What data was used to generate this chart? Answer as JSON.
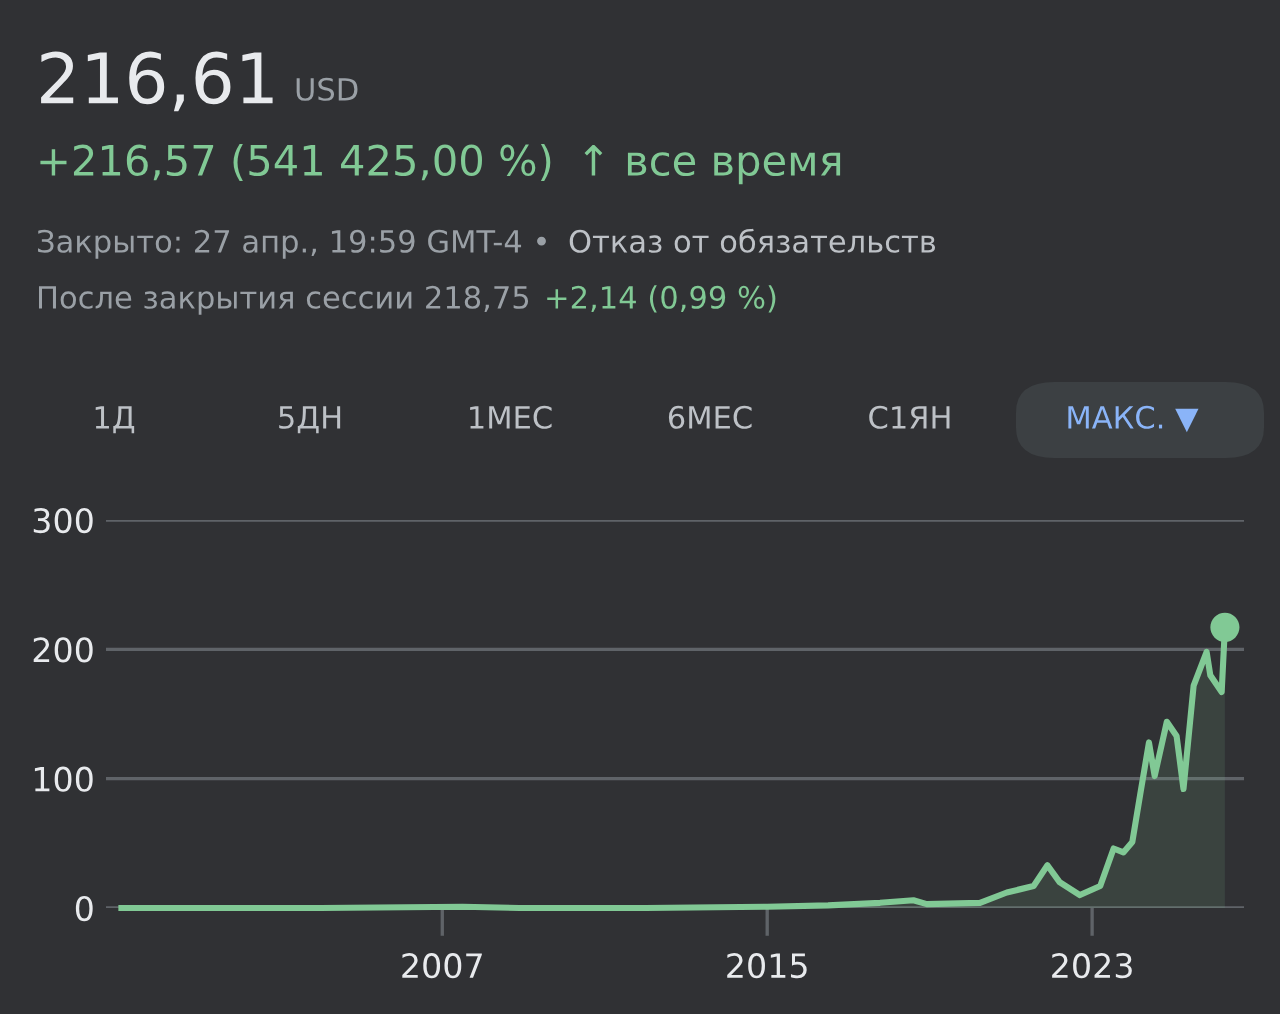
{
  "chart_data": {
    "type": "area",
    "title": "216,61",
    "annotations": [
      "USD",
      "+216,57 (541 425,00 %)",
      "↑ все время",
      "Закрыто: 27 апр., 19:59 GMT-4 •",
      "Отказ от обязательств",
      "После закрытия сессии 218,75",
      "+2,14 (0,99 %)",
      "1Д",
      "5ДН",
      "1МЕС",
      "6МЕС",
      "С1ЯН",
      "МАКС. ▼"
    ],
    "series": [
      {
        "color": "#81c995",
        "marker": "none",
        "x": [
          1999.1,
          2002,
          2004,
          2007.5,
          2008.9,
          2012,
          2015,
          2016.5,
          2017.78,
          2018.6,
          2018.93,
          2020.24,
          2020.9,
          2021.56,
          2021.9,
          2022.2,
          2022.7,
          2023.2,
          2023.53,
          2023.77,
          2023.99,
          2024.18,
          2024.4,
          2024.54,
          2024.84,
          2025.08,
          2025.25,
          2025.5,
          2025.82,
          2025.91,
          2026.19,
          2026.27
        ],
        "values": [
          0,
          0,
          0,
          1,
          0,
          0,
          1,
          2,
          4,
          6,
          3,
          4,
          12,
          17,
          33,
          20,
          10,
          17,
          46,
          43,
          51,
          87,
          128,
          102,
          144,
          133,
          92,
          172,
          198,
          180,
          167,
          217
        ]
      },
      {
        "type": "scatter",
        "color": "#81c995",
        "marker": "circle",
        "x": [
          2026.27
        ],
        "values": [
          217
        ]
      }
    ],
    "xlim": [
      1998.72,
      2026.74
    ],
    "xticks": [
      2007,
      2015,
      2023
    ],
    "ylim": [
      0,
      300
    ],
    "yticks": [
      0,
      100,
      200,
      300
    ],
    "grid": "y",
    "line_style": "solid"
  }
}
